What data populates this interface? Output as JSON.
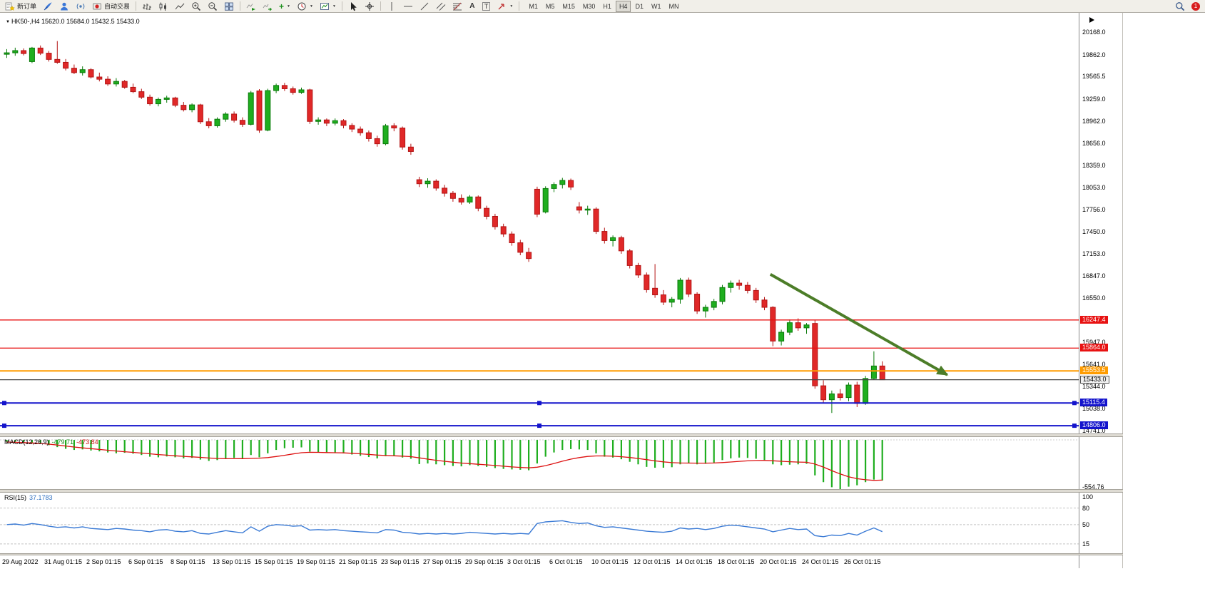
{
  "app": {
    "toolbar": {
      "new_order_label": "新订单",
      "auto_trading_label": "自动交易",
      "timeframes": [
        "M1",
        "M5",
        "M15",
        "M30",
        "H1",
        "H4",
        "D1",
        "W1",
        "MN"
      ],
      "active_timeframe": "H4",
      "notification_badge": "1",
      "text_tool_label": "A",
      "label_tool_label": "T",
      "indicators_plus_label": "+"
    }
  },
  "chart": {
    "symbol_title": "HK50-,H4",
    "ohlc_text": "15620.0 15684.0 15432.5 15433.0",
    "colors": {
      "bull": "#1fae1f",
      "bull_border": "#0a7a0a",
      "bear": "#e02828",
      "bear_border": "#b31414",
      "macd_bar": "#1fae1f",
      "macd_signal": "#dd1111",
      "rsi_line": "#3a7ad5",
      "arrow": "#4c7d28",
      "level_red": "#e81212",
      "level_orange": "#ff9c00",
      "level_blue": "#1414cc",
      "level_black": "#444444"
    },
    "price_range": {
      "top": 20435,
      "bottom": 14700
    },
    "price_axis_ticks": [
      20168.0,
      19862.0,
      19565.5,
      19259.0,
      18962.0,
      18656.0,
      18359.0,
      18053.0,
      17756.0,
      17450.0,
      17153.0,
      16847.0,
      16550.0,
      15947.0,
      15641.0,
      15344.0,
      15038.0,
      14741.0
    ],
    "levels": [
      {
        "price": 16247.4,
        "color": "red",
        "label": "16247.4",
        "selected": false,
        "current": false
      },
      {
        "price": 15864.0,
        "color": "red",
        "label": "15864.0",
        "selected": false,
        "current": false
      },
      {
        "price": 15553.5,
        "color": "orange",
        "label": "15553.5",
        "selected": false,
        "current": false
      },
      {
        "price": 15433.0,
        "color": "black",
        "label": "15433.0",
        "selected": false,
        "current": true
      },
      {
        "price": 15115.4,
        "color": "blue",
        "label": "15115.4",
        "selected": true,
        "current": false
      },
      {
        "price": 14806.0,
        "color": "blue",
        "label": "14806.0",
        "selected": true,
        "current": false
      }
    ],
    "macd": {
      "label": "MACD(12,26,9)",
      "main_value": "-479.71",
      "signal_value": "-473.84",
      "axis_label": "-554.76",
      "range": {
        "top": 34,
        "bottom": -580
      }
    },
    "rsi": {
      "label": "RSI(15)",
      "value": "37.1783",
      "axis_labels": [
        100,
        80,
        50,
        15
      ],
      "levels": [
        80,
        50,
        15
      ],
      "range": {
        "top": 108,
        "bottom": -2
      }
    }
  },
  "chart_data": {
    "type": "candlestick",
    "symbol": "HK50-",
    "timeframe": "H4",
    "title": "HK50-,H4 15620.0 15684.0 15432.5 15433.0",
    "current_bar": {
      "open": 15620.0,
      "high": 15684.0,
      "low": 15432.5,
      "close": 15433.0
    },
    "ylim": [
      14700,
      20435
    ],
    "grid": false,
    "time_labels": [
      "29 Aug 2022",
      "31 Aug 01:15",
      "2 Sep 01:15",
      "6 Sep 01:15",
      "8 Sep 01:15",
      "13 Sep 01:15",
      "15 Sep 01:15",
      "19 Sep 01:15",
      "21 Sep 01:15",
      "23 Sep 01:15",
      "27 Sep 01:15",
      "29 Sep 01:15",
      "3 Oct 01:15",
      "6 Oct 01:15",
      "10 Oct 01:15",
      "12 Oct 01:15",
      "14 Oct 01:15",
      "18 Oct 01:15",
      "20 Oct 01:15",
      "24 Oct 01:15",
      "26 Oct 01:15"
    ],
    "candles": [
      [
        19870,
        19940,
        19820,
        19890
      ],
      [
        19890,
        19960,
        19850,
        19920
      ],
      [
        19920,
        19950,
        19855,
        19880
      ],
      [
        19770,
        19970,
        19750,
        19955
      ],
      [
        19955,
        19990,
        19860,
        19885
      ],
      [
        19885,
        19915,
        19770,
        19800
      ],
      [
        19800,
        20050,
        19740,
        19760
      ],
      [
        19760,
        19805,
        19650,
        19680
      ],
      [
        19680,
        19730,
        19600,
        19620
      ],
      [
        19620,
        19705,
        19580,
        19660
      ],
      [
        19660,
        19680,
        19540,
        19560
      ],
      [
        19560,
        19620,
        19500,
        19530
      ],
      [
        19530,
        19570,
        19440,
        19465
      ],
      [
        19465,
        19545,
        19430,
        19500
      ],
      [
        19500,
        19520,
        19400,
        19420
      ],
      [
        19420,
        19470,
        19340,
        19360
      ],
      [
        19360,
        19400,
        19260,
        19285
      ],
      [
        19285,
        19320,
        19170,
        19195
      ],
      [
        19195,
        19280,
        19160,
        19255
      ],
      [
        19255,
        19305,
        19210,
        19275
      ],
      [
        19275,
        19290,
        19150,
        19175
      ],
      [
        19175,
        19220,
        19090,
        19115
      ],
      [
        19115,
        19200,
        19080,
        19180
      ],
      [
        19180,
        19195,
        18920,
        18950
      ],
      [
        18950,
        19000,
        18860,
        18895
      ],
      [
        18895,
        19010,
        18870,
        18985
      ],
      [
        18985,
        19080,
        18950,
        19055
      ],
      [
        19055,
        19090,
        18940,
        18970
      ],
      [
        18970,
        19010,
        18880,
        18915
      ],
      [
        18915,
        19370,
        18900,
        19345
      ],
      [
        19370,
        19395,
        18800,
        18835
      ],
      [
        18835,
        19400,
        18820,
        19375
      ],
      [
        19375,
        19470,
        19340,
        19445
      ],
      [
        19445,
        19480,
        19370,
        19400
      ],
      [
        19400,
        19430,
        19320,
        19350
      ],
      [
        19350,
        19415,
        19330,
        19385
      ],
      [
        19385,
        19400,
        18920,
        18955
      ],
      [
        18955,
        19010,
        18910,
        18975
      ],
      [
        18975,
        18995,
        18890,
        18930
      ],
      [
        18930,
        18995,
        18900,
        18965
      ],
      [
        18965,
        18985,
        18860,
        18900
      ],
      [
        18900,
        18930,
        18810,
        18850
      ],
      [
        18850,
        18885,
        18760,
        18800
      ],
      [
        18800,
        18830,
        18680,
        18720
      ],
      [
        18720,
        18760,
        18610,
        18650
      ],
      [
        18650,
        18920,
        18630,
        18895
      ],
      [
        18895,
        18930,
        18820,
        18865
      ],
      [
        18865,
        18885,
        18570,
        18605
      ],
      [
        18605,
        18650,
        18500,
        18545
      ],
      [
        18160,
        18200,
        18060,
        18105
      ],
      [
        18105,
        18180,
        18050,
        18140
      ],
      [
        18140,
        18165,
        18010,
        18045
      ],
      [
        18045,
        18090,
        17930,
        17975
      ],
      [
        17975,
        18005,
        17860,
        17905
      ],
      [
        17905,
        17960,
        17820,
        17855
      ],
      [
        17855,
        17950,
        17830,
        17925
      ],
      [
        17925,
        17945,
        17730,
        17770
      ],
      [
        17770,
        17805,
        17620,
        17660
      ],
      [
        17660,
        17695,
        17480,
        17520
      ],
      [
        17520,
        17560,
        17380,
        17420
      ],
      [
        17420,
        17455,
        17260,
        17300
      ],
      [
        17300,
        17340,
        17130,
        17170
      ],
      [
        17170,
        17230,
        17040,
        17085
      ],
      [
        18030,
        18065,
        17650,
        17690
      ],
      [
        17720,
        18070,
        17700,
        18040
      ],
      [
        18040,
        18125,
        17990,
        18095
      ],
      [
        18095,
        18185,
        18040,
        18150
      ],
      [
        18150,
        18175,
        18020,
        18060
      ],
      [
        17790,
        17855,
        17700,
        17745
      ],
      [
        17745,
        17805,
        17680,
        17760
      ],
      [
        17760,
        17785,
        17420,
        17455
      ],
      [
        17455,
        17505,
        17290,
        17330
      ],
      [
        17330,
        17400,
        17250,
        17370
      ],
      [
        17370,
        17395,
        17150,
        17190
      ],
      [
        17190,
        17215,
        16950,
        16990
      ],
      [
        16990,
        17025,
        16820,
        16860
      ],
      [
        16860,
        16895,
        16620,
        16660
      ],
      [
        16680,
        17010,
        16550,
        16590
      ],
      [
        16590,
        16655,
        16450,
        16490
      ],
      [
        16490,
        16560,
        16420,
        16530
      ],
      [
        16530,
        16820,
        16470,
        16790
      ],
      [
        16790,
        16825,
        16560,
        16600
      ],
      [
        16600,
        16625,
        16330,
        16370
      ],
      [
        16370,
        16455,
        16280,
        16420
      ],
      [
        16420,
        16535,
        16380,
        16500
      ],
      [
        16500,
        16725,
        16460,
        16690
      ],
      [
        16690,
        16785,
        16620,
        16750
      ],
      [
        16750,
        16795,
        16660,
        16720
      ],
      [
        16720,
        16765,
        16610,
        16650
      ],
      [
        16650,
        16685,
        16480,
        16520
      ],
      [
        16520,
        16560,
        16380,
        16420
      ],
      [
        16420,
        16435,
        15890,
        15960
      ],
      [
        15960,
        16115,
        15900,
        16080
      ],
      [
        16080,
        16255,
        16040,
        16210
      ],
      [
        16210,
        16270,
        16100,
        16140
      ],
      [
        16140,
        16205,
        16060,
        16180
      ],
      [
        16200,
        16245,
        15310,
        15350
      ],
      [
        15350,
        15425,
        15120,
        15160
      ],
      [
        15160,
        15285,
        14980,
        15240
      ],
      [
        15240,
        15305,
        15150,
        15190
      ],
      [
        15190,
        15395,
        15140,
        15360
      ],
      [
        15360,
        15405,
        15060,
        15110
      ],
      [
        15110,
        15485,
        15090,
        15450
      ],
      [
        15450,
        15820,
        15430,
        15620
      ],
      [
        15620,
        15684,
        15432.5,
        15433
      ]
    ],
    "macd_histogram": [
      -20,
      -28,
      -36,
      -32,
      -45,
      -62,
      -85,
      -105,
      -118,
      -112,
      -125,
      -135,
      -148,
      -158,
      -152,
      -162,
      -178,
      -198,
      -205,
      -195,
      -205,
      -218,
      -212,
      -232,
      -248,
      -238,
      -222,
      -212,
      -218,
      -178,
      -205,
      -158,
      -118,
      -98,
      -92,
      -88,
      -138,
      -148,
      -152,
      -148,
      -158,
      -172,
      -188,
      -202,
      -218,
      -192,
      -188,
      -208,
      -222,
      -285,
      -278,
      -288,
      -298,
      -308,
      -312,
      -298,
      -308,
      -318,
      -332,
      -342,
      -348,
      -352,
      -358,
      -278,
      -198,
      -148,
      -118,
      -108,
      -112,
      -118,
      -158,
      -198,
      -208,
      -228,
      -258,
      -288,
      -318,
      -328,
      -328,
      -322,
      -288,
      -278,
      -288,
      -282,
      -268,
      -238,
      -218,
      -208,
      -212,
      -222,
      -238,
      -288,
      -298,
      -292,
      -288,
      -282,
      -418,
      -498,
      -558,
      -585,
      -552,
      -535,
      -498,
      -468,
      -479.71
    ],
    "macd_signal": [
      -25,
      -28,
      -32,
      -36,
      -42,
      -50,
      -60,
      -72,
      -84,
      -94,
      -103,
      -112,
      -122,
      -131,
      -139,
      -147,
      -155,
      -164,
      -173,
      -180,
      -187,
      -194,
      -200,
      -206,
      -213,
      -219,
      -222,
      -222,
      -221,
      -218,
      -215,
      -208,
      -196,
      -181,
      -165,
      -151,
      -146,
      -147,
      -149,
      -151,
      -153,
      -158,
      -164,
      -171,
      -179,
      -184,
      -187,
      -191,
      -197,
      -212,
      -227,
      -240,
      -252,
      -263,
      -273,
      -280,
      -287,
      -294,
      -302,
      -310,
      -318,
      -324,
      -329,
      -322,
      -303,
      -278,
      -251,
      -227,
      -208,
      -195,
      -189,
      -189,
      -192,
      -198,
      -207,
      -219,
      -233,
      -247,
      -259,
      -268,
      -272,
      -273,
      -274,
      -274,
      -272,
      -267,
      -260,
      -253,
      -247,
      -243,
      -242,
      -246,
      -252,
      -257,
      -261,
      -264,
      -285,
      -320,
      -362,
      -402,
      -435,
      -457,
      -470,
      -477,
      -473.84
    ],
    "rsi": [
      50,
      51,
      49,
      52,
      50,
      47,
      45,
      46,
      44,
      46,
      43,
      42,
      41,
      43,
      42,
      40,
      39,
      37,
      40,
      41,
      38,
      37,
      39,
      34,
      33,
      36,
      39,
      37,
      35,
      46,
      38,
      47,
      50,
      49,
      47,
      48,
      40,
      41,
      40,
      41,
      39,
      38,
      37,
      36,
      35,
      41,
      40,
      36,
      35,
      33,
      34,
      33,
      34,
      33,
      34,
      36,
      35,
      34,
      33,
      34,
      33,
      34,
      33,
      52,
      55,
      56,
      57,
      54,
      52,
      53,
      48,
      45,
      46,
      44,
      42,
      40,
      38,
      37,
      36,
      38,
      44,
      42,
      43,
      41,
      43,
      47,
      49,
      48,
      46,
      44,
      42,
      37,
      40,
      43,
      41,
      42,
      30,
      28,
      31,
      30,
      34,
      31,
      38,
      44,
      37.1783
    ],
    "trend_arrow": {
      "from_index": 91,
      "from_price": 16870,
      "to_index": 112,
      "to_price": 15500
    }
  }
}
